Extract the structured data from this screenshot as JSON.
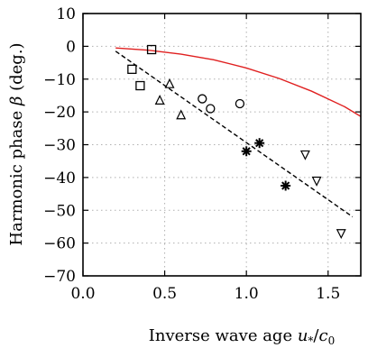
{
  "chart_data": {
    "type": "scatter",
    "xlabel_text": "Inverse wave age ",
    "xlabel_math": "u",
    "xlabel_math_sub": "*",
    "xlabel_slash": "/",
    "xlabel_math2": "c",
    "xlabel_math2_sub": "0",
    "ylabel_text": "Harmonic phase ",
    "ylabel_symbol": "β",
    "ylabel_unit": " (deg.)",
    "xlim": [
      0.0,
      1.7
    ],
    "ylim": [
      -70,
      10
    ],
    "x_ticks": [
      0.0,
      0.5,
      1.0,
      1.5
    ],
    "x_tick_labels": [
      "0.0",
      "0.5",
      "1.0",
      "1.5"
    ],
    "y_ticks": [
      10,
      0,
      -10,
      -20,
      -30,
      -40,
      -50,
      -60,
      -70
    ],
    "y_tick_labels": [
      "10",
      "0",
      "−10",
      "−20",
      "−30",
      "−40",
      "−50",
      "−60",
      "−70"
    ],
    "grid": true,
    "series": [
      {
        "marker": "square",
        "points": [
          [
            0.42,
            -1.0
          ],
          [
            0.3,
            -7.0
          ],
          [
            0.35,
            -12.0
          ]
        ]
      },
      {
        "marker": "triangle-up",
        "points": [
          [
            0.53,
            -11.5
          ],
          [
            0.47,
            -16.5
          ],
          [
            0.6,
            -21.0
          ]
        ]
      },
      {
        "marker": "circle",
        "points": [
          [
            0.73,
            -16.0
          ],
          [
            0.78,
            -19.0
          ],
          [
            0.96,
            -17.5
          ]
        ]
      },
      {
        "marker": "asterisk",
        "points": [
          [
            1.0,
            -32.0
          ],
          [
            1.08,
            -29.5
          ],
          [
            1.24,
            -42.5
          ]
        ]
      },
      {
        "marker": "triangle-down",
        "points": [
          [
            1.36,
            -33.0
          ],
          [
            1.43,
            -41.0
          ],
          [
            1.58,
            -57.0
          ]
        ]
      }
    ],
    "lines": [
      {
        "style": "solid",
        "color": "#e02020",
        "x": [
          0.2,
          0.4,
          0.6,
          0.8,
          1.0,
          1.2,
          1.4,
          1.6,
          1.7
        ],
        "y": [
          -0.5,
          -1.2,
          -2.4,
          -4.1,
          -6.6,
          -9.8,
          -13.7,
          -18.4,
          -21.4
        ]
      },
      {
        "style": "dashed",
        "color": "#000000",
        "x": [
          0.2,
          1.65
        ],
        "y": [
          -1.5,
          -52.0
        ]
      }
    ]
  }
}
